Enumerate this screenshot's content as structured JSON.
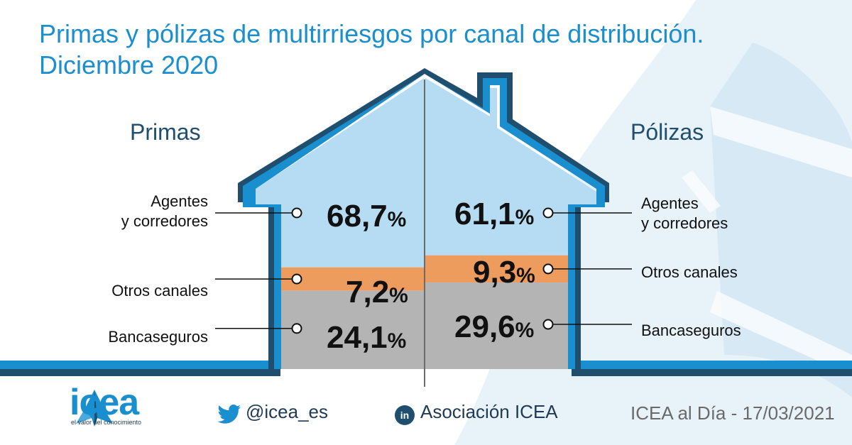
{
  "title_line1": "Primas y pólizas de multirriesgos por canal de distribución.",
  "title_line2": "Diciembre 2020",
  "colors": {
    "agentes": "#b6dcf3",
    "otros": "#ee9b5e",
    "banca": "#b4b4b4",
    "frame": "#1a8fd0",
    "frame_dark": "#1f4e6e"
  },
  "chart_data": {
    "type": "bar",
    "categories": [
      "Agentes y corredores",
      "Otros canales",
      "Bancaseguros"
    ],
    "series": [
      {
        "name": "Primas",
        "values": [
          68.7,
          7.2,
          24.1
        ]
      },
      {
        "name": "Pólizas",
        "values": [
          61.1,
          9.3,
          29.6
        ]
      }
    ],
    "unit": "%"
  },
  "left": {
    "label": "Primas",
    "agentes_l1": "Agentes",
    "agentes_l2": "y corredores",
    "otros": "Otros canales",
    "banca": "Bancaseguros",
    "v_agentes": "68,7",
    "v_otros": "7,2",
    "v_banca": "24,1"
  },
  "right": {
    "label": "Pólizas",
    "agentes_l1": "Agentes",
    "agentes_l2": "y corredores",
    "otros": "Otros canales",
    "banca": "Bancaseguros",
    "v_agentes": "61,1",
    "v_otros": "9,3",
    "v_banca": "29,6"
  },
  "pct_sign": "%",
  "footer": {
    "logo": "icea",
    "tagline": "el valor del conocimiento",
    "twitter": "@icea_es",
    "linkedin": "Asociación ICEA",
    "linkedin_icon_text": "in",
    "date_text": "ICEA al Día - 17/03/2021"
  },
  "icons": [
    "twitter-icon",
    "linkedin-icon",
    "icea-logo-icon"
  ]
}
